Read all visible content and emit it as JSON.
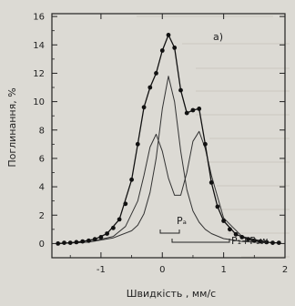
{
  "chart_data": {
    "type": "scatter",
    "panel_label": "a)",
    "xlabel": "Швидкість , мм/с",
    "ylabel": "Поглинання, %",
    "xlim": [
      -1.8,
      2.0
    ],
    "ylim": [
      -1.0,
      16.2
    ],
    "x_ticks": [
      -1,
      0,
      1,
      2
    ],
    "x_tick_labels": [
      "-1",
      "0",
      "1",
      "2"
    ],
    "y_ticks": [
      0,
      2,
      4,
      6,
      8,
      10,
      12,
      14,
      16
    ],
    "y_tick_labels": [
      "0",
      "2",
      "4",
      "6",
      "8",
      "10",
      "12",
      "14",
      "16"
    ],
    "grid": false,
    "series": [
      {
        "kind": "experimental points",
        "x": [
          -1.7,
          -1.6,
          -1.5,
          -1.4,
          -1.3,
          -1.2,
          -1.1,
          -1.0,
          -0.9,
          -0.8,
          -0.7,
          -0.6,
          -0.5,
          -0.4,
          -0.3,
          -0.2,
          -0.1,
          0.0,
          0.1,
          0.2,
          0.3,
          0.4,
          0.5,
          0.6,
          0.7,
          0.8,
          0.9,
          1.0,
          1.1,
          1.2,
          1.3,
          1.4,
          1.5,
          1.6,
          1.7,
          1.8,
          1.9
        ],
        "y": [
          0.0,
          0.05,
          0.05,
          0.1,
          0.15,
          0.2,
          0.3,
          0.45,
          0.7,
          1.1,
          1.7,
          2.8,
          4.5,
          7.0,
          9.6,
          11.0,
          12.0,
          13.6,
          14.7,
          13.8,
          10.8,
          9.2,
          9.4,
          9.5,
          7.0,
          4.3,
          2.6,
          1.6,
          1.0,
          0.65,
          0.45,
          0.3,
          0.2,
          0.15,
          0.1,
          0.05,
          0.05
        ]
      },
      {
        "kind": "fit curve",
        "x": [
          -1.7,
          -1.5,
          -1.3,
          -1.1,
          -0.9,
          -0.7,
          -0.5,
          -0.4,
          -0.3,
          -0.2,
          -0.1,
          0.0,
          0.1,
          0.2,
          0.3,
          0.4,
          0.5,
          0.6,
          0.7,
          0.8,
          0.9,
          1.0,
          1.2,
          1.4,
          1.6,
          1.8,
          1.9
        ],
        "y": [
          0.0,
          0.05,
          0.15,
          0.3,
          0.7,
          1.7,
          4.5,
          7.0,
          9.6,
          11.0,
          12.0,
          13.6,
          14.7,
          13.8,
          10.8,
          9.2,
          9.4,
          9.5,
          7.0,
          4.3,
          2.6,
          1.6,
          0.65,
          0.3,
          0.15,
          0.05,
          0.05
        ]
      },
      {
        "kind": "subspectrum P_a",
        "x": [
          -1.7,
          -1.2,
          -0.8,
          -0.5,
          -0.4,
          -0.3,
          -0.2,
          -0.1,
          0.0,
          0.1,
          0.2,
          0.3,
          0.4,
          0.5,
          0.6,
          0.7,
          0.8,
          1.0,
          1.3,
          1.7
        ],
        "y": [
          0.0,
          0.1,
          0.4,
          0.9,
          1.3,
          2.1,
          3.6,
          6.0,
          9.5,
          11.8,
          10.0,
          6.5,
          3.8,
          2.3,
          1.5,
          1.0,
          0.7,
          0.35,
          0.15,
          0.05
        ]
      },
      {
        "kind": "subspectrum P_1+P_1w",
        "x": [
          -1.7,
          -1.2,
          -0.8,
          -0.6,
          -0.4,
          -0.3,
          -0.2,
          -0.1,
          0.0,
          0.1,
          0.2,
          0.3,
          0.4,
          0.5,
          0.6,
          0.7,
          0.8,
          1.0,
          1.3,
          1.7
        ],
        "y": [
          0.0,
          0.1,
          0.5,
          1.2,
          3.0,
          4.8,
          6.8,
          7.7,
          6.5,
          4.6,
          3.4,
          3.4,
          5.0,
          7.2,
          7.9,
          6.7,
          4.8,
          1.8,
          0.5,
          0.1
        ]
      }
    ],
    "annotations": [
      {
        "name": "p_a",
        "text": "Pₐ"
      },
      {
        "name": "p1_p1w",
        "text": "P₁+P₁w"
      }
    ]
  }
}
